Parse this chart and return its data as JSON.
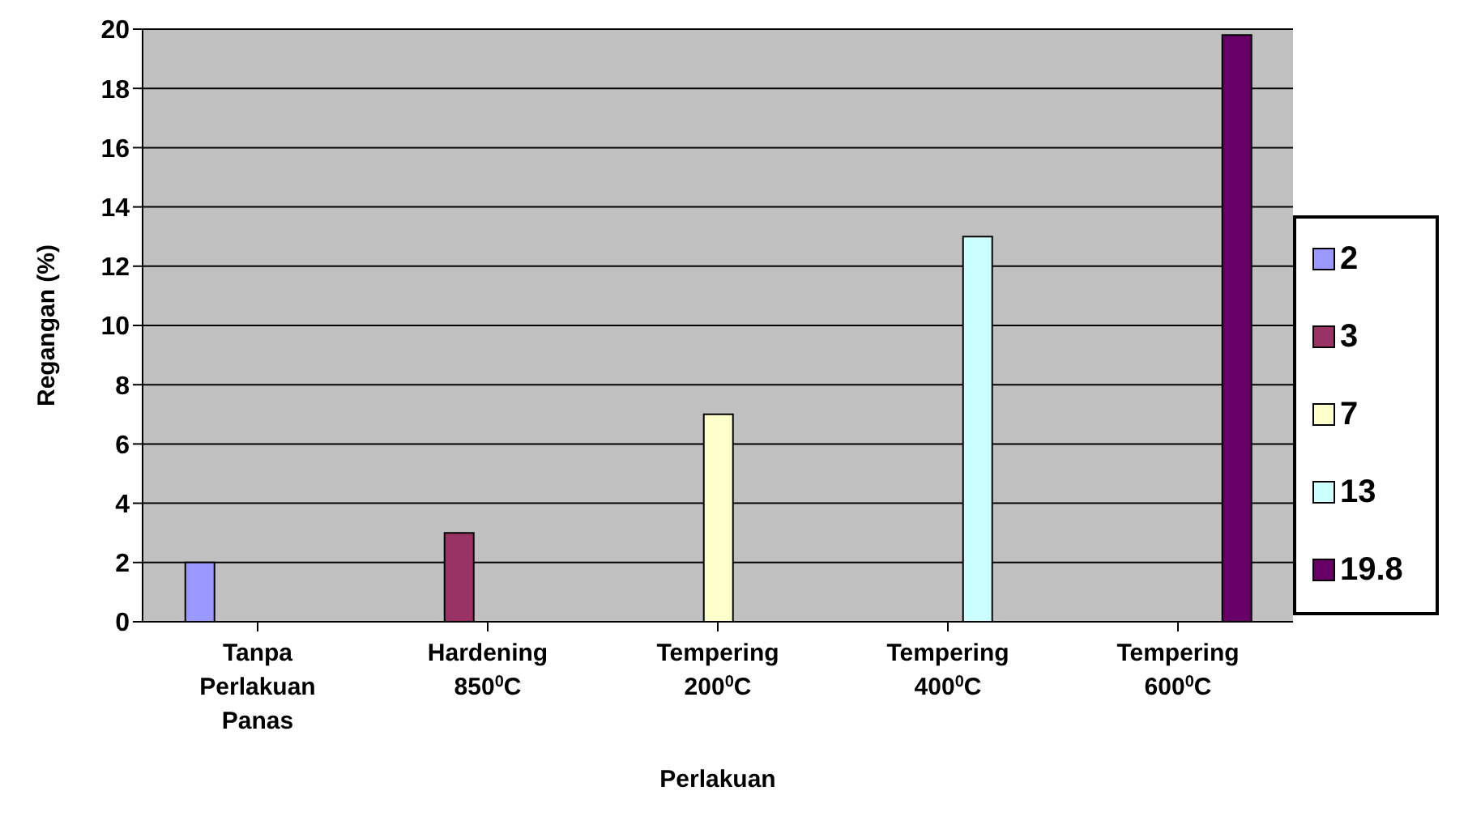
{
  "chart_data": {
    "type": "bar",
    "xlabel": "Perlakuan",
    "ylabel": "Regangan (%)",
    "categories": [
      "Tanpa Perlakuan Panas",
      "Hardening 850$^{0}$C",
      "Tempering 200$^{0}$C",
      "Tempering 400$^{0}$C",
      "Tempering 600$^{0}$C"
    ],
    "series": [
      {
        "name": "2",
        "color": "#9999ff",
        "values": [
          2,
          null,
          null,
          null,
          null
        ]
      },
      {
        "name": "3",
        "color": "#993366",
        "values": [
          null,
          3,
          null,
          null,
          null
        ]
      },
      {
        "name": "7",
        "color": "#ffffcc",
        "values": [
          null,
          null,
          7,
          null,
          null
        ]
      },
      {
        "name": "13",
        "color": "#ccffff",
        "values": [
          null,
          null,
          null,
          13,
          null
        ]
      },
      {
        "name": "19.8",
        "color": "#660066",
        "values": [
          null,
          null,
          null,
          null,
          19.8
        ]
      }
    ],
    "ylim": [
      0,
      20
    ],
    "yticks": [
      0,
      2,
      4,
      6,
      8,
      10,
      12,
      14,
      16,
      18,
      20
    ],
    "grid": "y",
    "legend": "right"
  }
}
